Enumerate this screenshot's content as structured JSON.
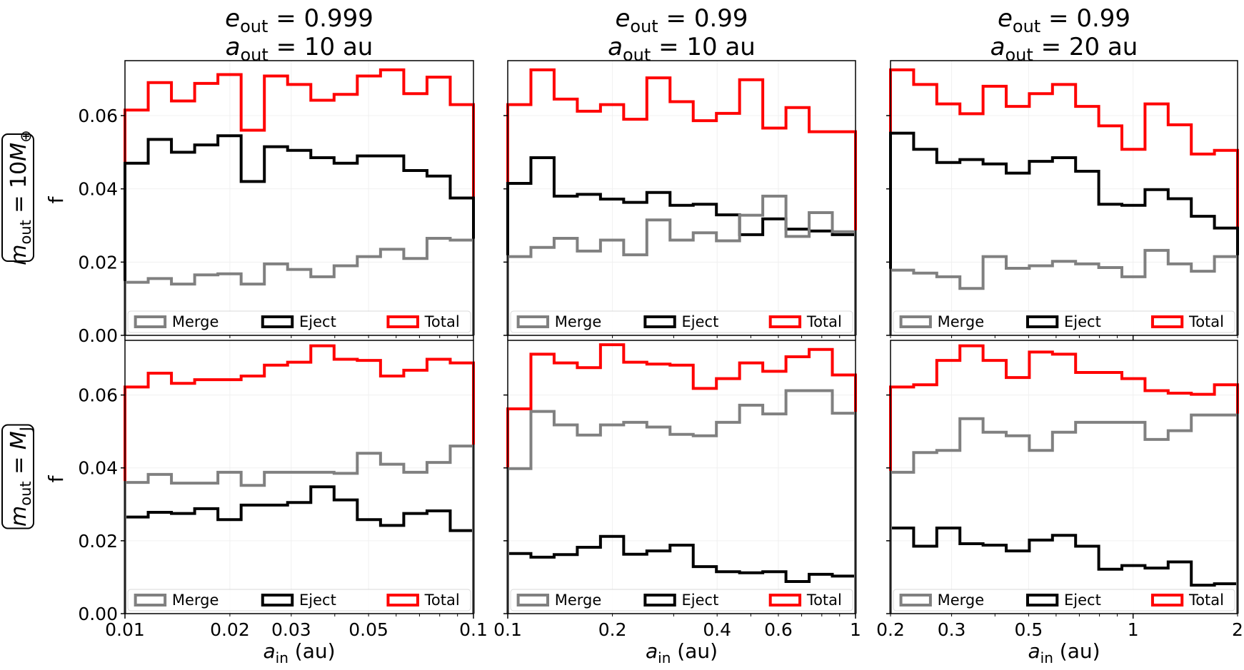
{
  "chart_data": {
    "type": "histogram",
    "y_label": "f",
    "x_label": "a_in (au)",
    "y_ticks": [
      "0.00",
      "0.02",
      "0.04",
      "0.06"
    ],
    "ylim": [
      0,
      0.075
    ],
    "legend": [
      "Merge",
      "Eject",
      "Total"
    ],
    "series_colors": {
      "Merge": "#808080",
      "Eject": "#000000",
      "Total": "#ff0000"
    },
    "columns": [
      {
        "title_e": "0.999",
        "title_a": "10 au",
        "xlim": [
          0.01,
          0.1
        ],
        "x_ticks": [
          {
            "v": 0.01,
            "l": "0.01"
          },
          {
            "v": 0.02,
            "l": "0.02"
          },
          {
            "v": 0.03,
            "l": "0.03"
          },
          {
            "v": 0.05,
            "l": "0.05"
          },
          {
            "v": 0.1,
            "l": "0.1"
          }
        ]
      },
      {
        "title_e": "0.99",
        "title_a": "10 au",
        "xlim": [
          0.1,
          1
        ],
        "x_ticks": [
          {
            "v": 0.1,
            "l": "0.1"
          },
          {
            "v": 0.2,
            "l": "0.2"
          },
          {
            "v": 0.4,
            "l": "0.4"
          },
          {
            "v": 0.6,
            "l": "0.6"
          },
          {
            "v": 1,
            "l": "1"
          }
        ]
      },
      {
        "title_e": "0.99",
        "title_a": "20 au",
        "xlim": [
          0.2,
          2
        ],
        "x_ticks": [
          {
            "v": 0.2,
            "l": "0.2"
          },
          {
            "v": 0.3,
            "l": "0.3"
          },
          {
            "v": 0.5,
            "l": "0.5"
          },
          {
            "v": 1,
            "l": "1"
          },
          {
            "v": 2,
            "l": "2"
          }
        ]
      }
    ],
    "rows": [
      {
        "label": "m_out = 10 M⊕"
      },
      {
        "label": "m_out = M_J"
      }
    ],
    "panels": [
      {
        "row": 0,
        "col": 0,
        "Merge": [
          0.0145,
          0.0155,
          0.014,
          0.0165,
          0.0168,
          0.014,
          0.0195,
          0.018,
          0.016,
          0.019,
          0.0215,
          0.0235,
          0.021,
          0.0265,
          0.026
        ],
        "Eject": [
          0.047,
          0.0535,
          0.05,
          0.052,
          0.0545,
          0.042,
          0.0515,
          0.0505,
          0.0485,
          0.047,
          0.049,
          0.049,
          0.045,
          0.0435,
          0.0375
        ],
        "Total": [
          0.0615,
          0.069,
          0.064,
          0.0688,
          0.0712,
          0.056,
          0.0708,
          0.0685,
          0.0642,
          0.0658,
          0.0708,
          0.0725,
          0.066,
          0.0705,
          0.063
        ]
      },
      {
        "row": 0,
        "col": 1,
        "Merge": [
          0.0215,
          0.024,
          0.0265,
          0.023,
          0.026,
          0.022,
          0.0315,
          0.026,
          0.028,
          0.0258,
          0.0328,
          0.038,
          0.027,
          0.0335,
          0.0283
        ],
        "Eject": [
          0.0415,
          0.0485,
          0.038,
          0.0385,
          0.0372,
          0.0363,
          0.039,
          0.0355,
          0.0358,
          0.0329,
          0.0275,
          0.0318,
          0.029,
          0.0285,
          0.0275
        ],
        "Total": [
          0.063,
          0.0725,
          0.0645,
          0.0612,
          0.063,
          0.059,
          0.0703,
          0.0638,
          0.0586,
          0.0606,
          0.0698,
          0.0566,
          0.0622,
          0.0556,
          0.0556
        ]
      },
      {
        "row": 0,
        "col": 2,
        "Merge": [
          0.0178,
          0.017,
          0.016,
          0.0128,
          0.0215,
          0.0183,
          0.019,
          0.0202,
          0.0195,
          0.0185,
          0.016,
          0.0232,
          0.0195,
          0.0175,
          0.0215
        ],
        "Eject": [
          0.0552,
          0.0508,
          0.0472,
          0.048,
          0.0468,
          0.0443,
          0.0475,
          0.0485,
          0.0448,
          0.0358,
          0.0355,
          0.0398,
          0.0373,
          0.0325,
          0.0293
        ],
        "Total": [
          0.0725,
          0.0685,
          0.0632,
          0.0605,
          0.068,
          0.0625,
          0.066,
          0.0685,
          0.0625,
          0.0572,
          0.0508,
          0.0632,
          0.0575,
          0.0495,
          0.0505
        ]
      },
      {
        "row": 1,
        "col": 0,
        "Merge": [
          0.036,
          0.0382,
          0.0358,
          0.0358,
          0.0388,
          0.0352,
          0.0388,
          0.0388,
          0.0388,
          0.0385,
          0.044,
          0.041,
          0.0388,
          0.0415,
          0.046
        ],
        "Eject": [
          0.0265,
          0.0278,
          0.0275,
          0.0288,
          0.0258,
          0.0298,
          0.0298,
          0.0305,
          0.0348,
          0.0312,
          0.0258,
          0.0242,
          0.0275,
          0.0282,
          0.0228
        ],
        "Total": [
          0.0622,
          0.066,
          0.0632,
          0.0642,
          0.0642,
          0.0652,
          0.0682,
          0.069,
          0.0735,
          0.0698,
          0.0695,
          0.0652,
          0.0668,
          0.0698,
          0.0688
        ]
      },
      {
        "row": 1,
        "col": 1,
        "Merge": [
          0.0398,
          0.0555,
          0.0518,
          0.049,
          0.0518,
          0.0525,
          0.0512,
          0.0492,
          0.0488,
          0.0525,
          0.0572,
          0.0548,
          0.0612,
          0.0612,
          0.055
        ],
        "Eject": [
          0.0165,
          0.0155,
          0.0162,
          0.0182,
          0.0212,
          0.0163,
          0.0172,
          0.0188,
          0.0129,
          0.0115,
          0.0112,
          0.0115,
          0.0088,
          0.0108,
          0.0103
        ],
        "Total": [
          0.0562,
          0.0712,
          0.0688,
          0.0675,
          0.0738,
          0.069,
          0.0685,
          0.0682,
          0.0618,
          0.0645,
          0.0688,
          0.0665,
          0.0705,
          0.0725,
          0.0655
        ]
      },
      {
        "row": 1,
        "col": 2,
        "Merge": [
          0.0388,
          0.0442,
          0.0448,
          0.0535,
          0.0498,
          0.0488,
          0.0448,
          0.0498,
          0.0525,
          0.0525,
          0.0525,
          0.0478,
          0.0502,
          0.0545,
          0.0545
        ],
        "Eject": [
          0.0235,
          0.0185,
          0.0235,
          0.0192,
          0.0188,
          0.0172,
          0.0202,
          0.0215,
          0.0185,
          0.0122,
          0.0132,
          0.0125,
          0.0142,
          0.0078,
          0.0082
        ],
        "Total": [
          0.0622,
          0.0628,
          0.0695,
          0.0735,
          0.0695,
          0.0648,
          0.0718,
          0.0712,
          0.0662,
          0.0662,
          0.0645,
          0.0612,
          0.0605,
          0.0602,
          0.0628
        ]
      }
    ]
  }
}
